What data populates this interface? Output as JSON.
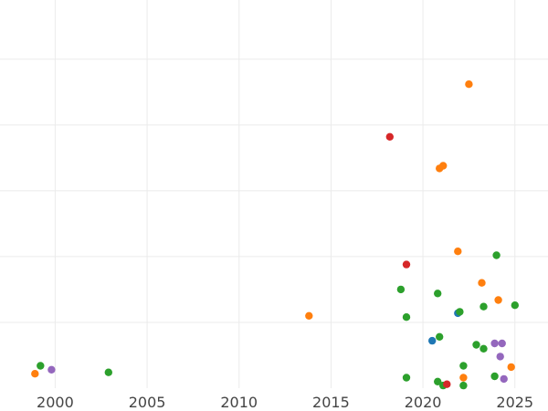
{
  "chart_data": {
    "type": "scatter",
    "title": "",
    "xlabel": "",
    "ylabel": "",
    "xlim": [
      1997.0,
      2026.8
    ],
    "ylim": [
      0,
      2.95
    ],
    "x_ticks": [
      2000,
      2005,
      2010,
      2015,
      2020,
      2025
    ],
    "y_gridlines": [
      0.5,
      1.0,
      1.5,
      2.0,
      2.5
    ],
    "grid": true,
    "legend": "none",
    "series": [
      {
        "color": "#1f77b4",
        "points": [
          [
            2020.5,
            0.36
          ],
          [
            2021.9,
            0.57
          ]
        ]
      },
      {
        "color": "#ff7f0e",
        "points": [
          [
            1998.9,
            0.11
          ],
          [
            2013.8,
            0.55
          ],
          [
            2020.9,
            1.67
          ],
          [
            2021.1,
            1.69
          ],
          [
            2021.9,
            1.04
          ],
          [
            2022.2,
            0.08
          ],
          [
            2022.5,
            2.31
          ],
          [
            2023.2,
            0.8
          ],
          [
            2024.1,
            0.67
          ],
          [
            2024.8,
            0.16
          ]
        ]
      },
      {
        "color": "#2ca02c",
        "points": [
          [
            1999.2,
            0.17
          ],
          [
            2002.9,
            0.12
          ],
          [
            2018.8,
            0.75
          ],
          [
            2019.1,
            0.08
          ],
          [
            2019.1,
            0.54
          ],
          [
            2020.8,
            0.05
          ],
          [
            2020.8,
            0.72
          ],
          [
            2020.9,
            0.39
          ],
          [
            2021.1,
            0.02
          ],
          [
            2022.0,
            0.58
          ],
          [
            2022.2,
            0.17
          ],
          [
            2022.2,
            0.02
          ],
          [
            2022.9,
            0.33
          ],
          [
            2023.3,
            0.3
          ],
          [
            2023.3,
            0.62
          ],
          [
            2023.9,
            0.09
          ],
          [
            2024.0,
            1.01
          ],
          [
            2025.0,
            0.63
          ]
        ]
      },
      {
        "color": "#d62728",
        "points": [
          [
            2018.2,
            1.91
          ],
          [
            2019.1,
            0.94
          ],
          [
            2021.3,
            0.03
          ]
        ]
      },
      {
        "color": "#9467bd",
        "points": [
          [
            1999.8,
            0.14
          ],
          [
            2023.9,
            0.34
          ],
          [
            2024.2,
            0.24
          ],
          [
            2024.3,
            0.34
          ],
          [
            2024.4,
            0.07
          ]
        ]
      }
    ]
  }
}
